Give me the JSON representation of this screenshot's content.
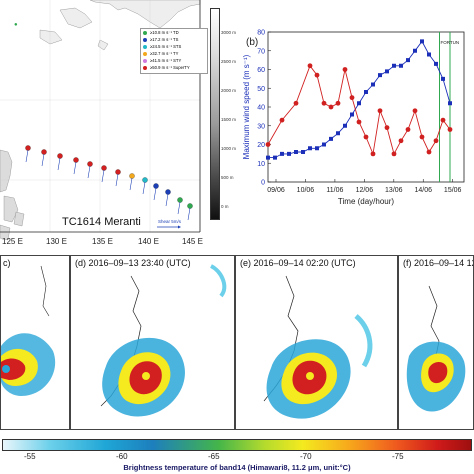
{
  "map": {
    "storm_name": "TC1614 Meranti",
    "lon_labels": [
      "125 E",
      "130 E",
      "135 E",
      "140 E",
      "145 E"
    ],
    "elevation_labels": [
      "3000 m",
      "2500 m",
      "2000 m",
      "1500 m",
      "1000 m",
      "500 m",
      "0 m"
    ],
    "legend": [
      {
        "label": "≥10.8 m s⁻¹ TD",
        "color": "#2fa84f"
      },
      {
        "label": "≥17.2 m s⁻¹ TS",
        "color": "#1c3fb5"
      },
      {
        "label": "≥24.5 m s⁻¹ STS",
        "color": "#22b8c8"
      },
      {
        "label": "≥32.7 m s⁻¹ TY",
        "color": "#f2a81d"
      },
      {
        "label": "≥41.5 m s⁻¹ STY",
        "color": "#d07be0"
      },
      {
        "label": "≥50.9 m s⁻¹ SuperTY",
        "color": "#d21f1f"
      }
    ],
    "track_colors": [
      "#2fa84f",
      "#2fa84f",
      "#1c3fb5",
      "#1c3fb5",
      "#22b8c8",
      "#f2a81d",
      "#d21f1f",
      "#d21f1f",
      "#d21f1f",
      "#d21f1f",
      "#d21f1f",
      "#d21f1f",
      "#d21f1f"
    ],
    "shear_label": "Shear 5m/s"
  },
  "chart_data": {
    "type": "line",
    "panel_label": "(b)",
    "xlabel": "Time (day/hour)",
    "ylabel": "Maximum wind speed (m s⁻¹)",
    "ylim": [
      0,
      80
    ],
    "yticks": [
      0,
      10,
      20,
      30,
      40,
      50,
      60,
      70,
      80
    ],
    "x_tick_labels": [
      "09/06",
      "10/06",
      "11/06",
      "12/06",
      "13/06",
      "14/06",
      "15/06"
    ],
    "xlim": [
      0,
      28
    ],
    "annotation": "FORTUN",
    "series": [
      {
        "color": "#1b2fb8",
        "marker": "square",
        "x": [
          0,
          1,
          2,
          3,
          4,
          5,
          6,
          7,
          8,
          9,
          10,
          11,
          12,
          13,
          14,
          15,
          16,
          17,
          18,
          19,
          20,
          21,
          22,
          23,
          24,
          25,
          26
        ],
        "values": [
          13,
          13,
          15,
          15,
          16,
          16,
          18,
          18,
          20,
          23,
          26,
          30,
          36,
          42,
          48,
          52,
          57,
          59,
          62,
          62,
          65,
          70,
          75,
          68,
          63,
          55,
          42
        ]
      },
      {
        "color": "#d12020",
        "marker": "circle",
        "x": [
          0,
          2,
          4,
          6,
          7,
          8,
          9,
          10,
          11,
          12,
          13,
          14,
          15,
          16,
          17,
          18,
          19,
          20,
          21,
          22,
          23,
          24,
          25,
          26
        ],
        "values": [
          20,
          33,
          42,
          62,
          57,
          42,
          40,
          42,
          60,
          45,
          32,
          24,
          15,
          38,
          29,
          15,
          22,
          28,
          38,
          24,
          16,
          22,
          33,
          28
        ]
      }
    ],
    "vlines": [
      {
        "x": 24.5,
        "color": "#2fa84f"
      },
      {
        "x": 26.0,
        "color": "#2fa84f"
      }
    ]
  },
  "satellite_panels": [
    {
      "label": "c)",
      "title": ""
    },
    {
      "label": "(d)",
      "title": "2016–09–13 23:40 (UTC)"
    },
    {
      "label": "(e)",
      "title": "2016–09–14 02:20 (UTC)"
    },
    {
      "label": "(f)",
      "title": "2016–09–14 12:"
    }
  ],
  "colorbar": {
    "ticks": [
      "-55",
      "-60",
      "-65",
      "-70",
      "-75"
    ],
    "title": "Brightness temperature of band14 (Himawari8, 11.2 μm, unit:°C)"
  }
}
